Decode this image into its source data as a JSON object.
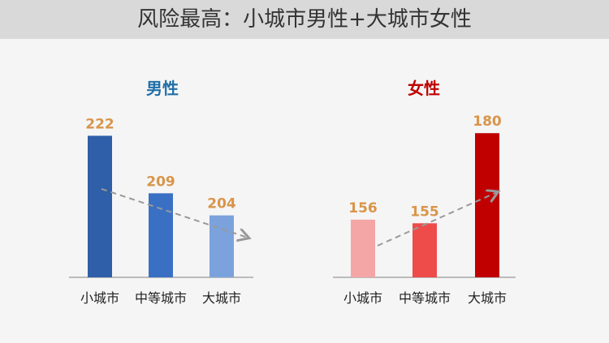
{
  "title": "风险最高：小城市男性+大城市女性",
  "chart_data": [
    {
      "type": "bar",
      "title": "男性",
      "title_color": "#1f6fa8",
      "categories": [
        "小城市",
        "中等城市",
        "大城市"
      ],
      "values": [
        222,
        209,
        204
      ],
      "colors": [
        "#2f5fa8",
        "#3a70c4",
        "#7ba2dc"
      ],
      "ylim": [
        190,
        223
      ],
      "trend": "down",
      "label_color": "#d9954a"
    },
    {
      "type": "bar",
      "title": "女性",
      "title_color": "#c00000",
      "categories": [
        "小城市",
        "中等城市",
        "大城市"
      ],
      "values": [
        156,
        155,
        180
      ],
      "colors": [
        "#f4a6a6",
        "#ee4b4b",
        "#c00000"
      ],
      "ylim": [
        140,
        180.5
      ],
      "trend": "up",
      "label_color": "#d9954a"
    }
  ]
}
